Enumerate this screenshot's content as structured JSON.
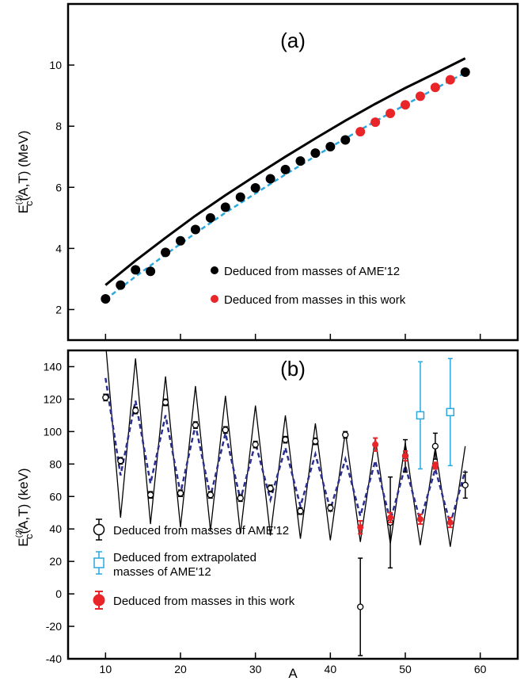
{
  "chart_data": [
    {
      "panel": "(a)",
      "type": "scatter",
      "ylabel_main": "E",
      "ylabel_sup": "(1)",
      "ylabel_sub": "c",
      "ylabel_rest": "(A,T)   (MeV)",
      "xlim": [
        5,
        65
      ],
      "ylim": [
        1,
        12
      ],
      "yticks": [
        2,
        4,
        6,
        8,
        10
      ],
      "ytick_labels": [
        "2",
        "4",
        "6",
        "8",
        "10"
      ],
      "grid": false,
      "legend_position": "bottom-right",
      "series": [
        {
          "name": "Deduced from masses of AME'12",
          "kind": "points",
          "color": "#000000",
          "x": [
            10,
            12,
            14,
            16,
            18,
            20,
            22,
            24,
            26,
            28,
            30,
            32,
            34,
            36,
            38,
            40,
            42,
            58
          ],
          "y": [
            2.35,
            2.8,
            3.3,
            3.25,
            3.87,
            4.25,
            4.62,
            5.0,
            5.35,
            5.68,
            5.98,
            6.28,
            6.58,
            6.86,
            7.12,
            7.33,
            7.55,
            9.77
          ]
        },
        {
          "name": "Deduced from masses in this work",
          "kind": "points",
          "color": "#e8262a",
          "x": [
            44,
            46,
            48,
            50,
            52,
            54,
            56
          ],
          "y": [
            7.82,
            8.13,
            8.42,
            8.7,
            8.98,
            9.27,
            9.52
          ]
        },
        {
          "kind": "line",
          "color": "#000000",
          "x": [
            10,
            14,
            18,
            22,
            26,
            30,
            34,
            38,
            42,
            46,
            50,
            54,
            58
          ],
          "y": [
            2.8,
            3.6,
            4.35,
            5.07,
            5.74,
            6.38,
            7.0,
            7.6,
            8.18,
            8.73,
            9.25,
            9.73,
            10.22
          ]
        },
        {
          "kind": "dashed-line",
          "color": "#29a8e0",
          "x": [
            10,
            14,
            18,
            22,
            26,
            30,
            34,
            38,
            42,
            46,
            50,
            54,
            58
          ],
          "y": [
            2.33,
            3.08,
            3.8,
            4.5,
            5.17,
            5.8,
            6.42,
            7.02,
            7.6,
            8.16,
            8.7,
            9.23,
            9.75
          ]
        }
      ]
    },
    {
      "panel": "(b)",
      "type": "scatter",
      "xlabel": "A",
      "ylabel_main": "E",
      "ylabel_sup": "(2)",
      "ylabel_sub": "c",
      "ylabel_rest": "(A,T)   (keV)",
      "xlim": [
        5,
        65
      ],
      "ylim": [
        -40,
        150
      ],
      "xticks": [
        10,
        20,
        30,
        40,
        50,
        60
      ],
      "xtick_labels": [
        "10",
        "20",
        "30",
        "40",
        "50",
        "60"
      ],
      "yticks": [
        -40,
        -20,
        0,
        20,
        40,
        60,
        80,
        100,
        120,
        140
      ],
      "ytick_labels": [
        "-40",
        "-20",
        "0",
        "20",
        "40",
        "60",
        "80",
        "100",
        "120",
        "140"
      ],
      "grid": false,
      "legend_position": "bottom-left",
      "series": [
        {
          "name": "Deduced from masses of AME'12",
          "kind": "points",
          "color": "#000000",
          "x": [
            10,
            12,
            14,
            16,
            18,
            20,
            22,
            24,
            26,
            28,
            30,
            32,
            34,
            36,
            38,
            40,
            42,
            44,
            48,
            50,
            54,
            58
          ],
          "y": [
            121,
            82,
            113,
            61,
            118,
            62,
            104,
            61,
            101,
            59,
            92,
            65,
            95,
            51,
            94,
            53,
            98,
            -8,
            44,
            85,
            91,
            67
          ],
          "err": [
            2,
            2,
            2,
            2,
            2,
            2,
            2,
            2,
            2,
            2,
            2,
            2,
            2,
            2,
            2,
            2,
            2,
            30,
            28,
            10,
            8,
            8
          ]
        },
        {
          "name": "Deduced from extrapolated masses of AME'12",
          "kind": "points",
          "color": "#29a8e0",
          "x": [
            52,
            56
          ],
          "y": [
            110,
            112
          ],
          "err": [
            33,
            33
          ]
        },
        {
          "name": "Deduced from masses in this work",
          "kind": "points",
          "color": "#e8262a",
          "x": [
            44,
            46,
            48,
            50,
            52,
            54,
            56
          ],
          "y": [
            41,
            92,
            47,
            85,
            46,
            79,
            44
          ],
          "err": [
            4,
            4,
            3,
            3,
            3,
            2,
            3
          ]
        },
        {
          "kind": "line",
          "color": "#000000",
          "x": [
            10,
            12,
            14,
            16,
            18,
            20,
            22,
            24,
            26,
            28,
            30,
            32,
            34,
            36,
            38,
            40,
            42,
            44,
            46,
            48,
            50,
            52,
            54,
            56,
            58
          ],
          "y": [
            155,
            47,
            145,
            43,
            134,
            41,
            128,
            39,
            122,
            37,
            116,
            36,
            110,
            34,
            105,
            33,
            100,
            32,
            96,
            31,
            93,
            30,
            90,
            29,
            91
          ]
        },
        {
          "kind": "dashed-line",
          "color": "#2b2f8f",
          "x": [
            10,
            12,
            14,
            16,
            18,
            20,
            22,
            24,
            26,
            28,
            30,
            32,
            34,
            36,
            38,
            40,
            42,
            44,
            46,
            48,
            50,
            52,
            54,
            56,
            58
          ],
          "y": [
            133,
            73,
            119,
            68,
            110,
            62,
            104,
            60,
            99,
            58,
            93,
            58,
            90,
            54,
            86,
            52,
            83,
            48,
            82,
            45,
            79,
            45,
            77,
            43,
            76
          ]
        }
      ]
    }
  ]
}
